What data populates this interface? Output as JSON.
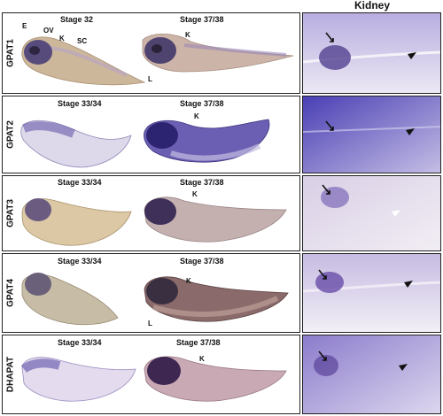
{
  "kidney_header": "Kidney",
  "rows": [
    {
      "gene": "GPAT1",
      "stage_left": "Stage 32",
      "stage_right": "Stage 37/38",
      "annotations": {
        "e": "E",
        "ov": "OV",
        "k_left": "K",
        "sc": "SC",
        "k_right": "K",
        "l": "L"
      }
    },
    {
      "gene": "GPAT2",
      "stage_left": "Stage 33/34",
      "stage_right": "Stage 37/38",
      "annotations": {
        "k_right": "K"
      }
    },
    {
      "gene": "GPAT3",
      "stage_left": "Stage 33/34",
      "stage_right": "Stage 37/38",
      "annotations": {
        "k_right": "K"
      }
    },
    {
      "gene": "GPAT4",
      "stage_left": "Stage 33/34",
      "stage_right": "Stage 37/38",
      "annotations": {
        "k_right": "K",
        "l": "L"
      }
    },
    {
      "gene": "DHAPAT",
      "stage_left": "Stage 33/34",
      "stage_right": "Stage 37/38",
      "annotations": {
        "k_right": "K"
      }
    }
  ]
}
